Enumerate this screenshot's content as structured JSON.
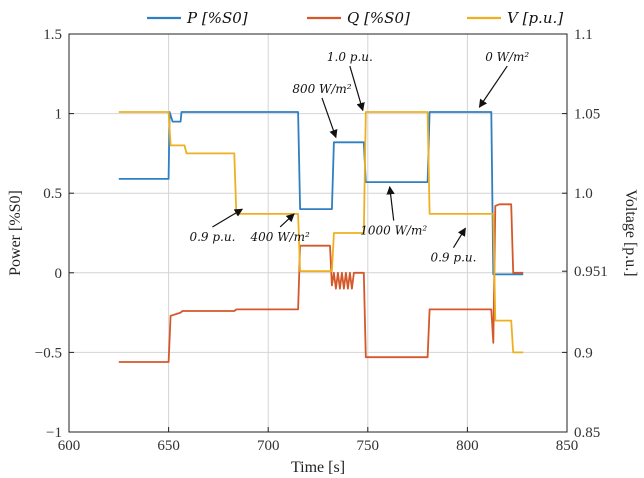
{
  "chart_data": {
    "type": "line",
    "xlabel": "Time [s]",
    "ylabel_left": "Power [%S0]",
    "ylabel_right": "Voltage [p.u.]",
    "xlim": [
      600,
      850
    ],
    "ylim_left": [
      -1,
      1.5
    ],
    "ylim_right": [
      0.85,
      1.1
    ],
    "x_ticks": [
      600,
      650,
      700,
      750,
      800,
      850
    ],
    "y_ticks_left": [
      -1,
      -0.5,
      0,
      0.5,
      1,
      1.5
    ],
    "y_tick_labels_left": [
      "−1",
      "−0.5",
      "0",
      "0.5",
      "1",
      "1.5"
    ],
    "y_ticks_right": [
      0.85,
      0.9,
      0.951,
      1.0,
      1.05,
      1.1
    ],
    "y_tick_labels_right": [
      "0.85",
      "0.9",
      "0.951",
      "1.0",
      "1.05",
      "1.1"
    ],
    "grid": true,
    "legend_position": "top",
    "series": [
      {
        "name": "P [%S0]",
        "color": "#2f7fc1",
        "axis": "left",
        "x": [
          625,
          650,
          650.5,
          652,
          656,
          656.5,
          715,
          716,
          732,
          733,
          748,
          749,
          780,
          781,
          812,
          813,
          828
        ],
        "y": [
          0.59,
          0.59,
          1.01,
          0.95,
          0.95,
          1.01,
          1.01,
          0.4,
          0.4,
          0.82,
          0.82,
          0.57,
          0.57,
          1.01,
          1.01,
          -0.01,
          -0.01
        ]
      },
      {
        "name": "Q [%S0]",
        "color": "#d5582b",
        "axis": "left",
        "x": [
          625,
          650,
          651,
          656,
          657,
          683,
          684,
          715,
          716,
          717,
          731,
          732,
          733,
          734,
          735,
          736,
          737,
          738,
          739,
          740,
          741,
          742,
          743,
          748,
          749,
          780,
          781,
          812,
          813,
          814,
          816,
          822,
          823,
          828
        ],
        "y": [
          -0.56,
          -0.56,
          -0.27,
          -0.25,
          -0.24,
          -0.24,
          -0.23,
          -0.23,
          0.17,
          0.17,
          0.17,
          -0.08,
          0.0,
          -0.1,
          0.0,
          -0.1,
          0.0,
          -0.1,
          0.0,
          -0.1,
          0.0,
          -0.1,
          0.0,
          0.0,
          -0.53,
          -0.53,
          -0.23,
          -0.23,
          -0.44,
          0.42,
          0.43,
          0.43,
          0.0,
          0.0
        ]
      },
      {
        "name": "V [p.u.]",
        "color": "#eeb020",
        "axis": "right",
        "x": [
          625,
          650,
          651,
          658,
          659,
          683,
          684,
          715,
          716,
          732,
          733,
          748,
          749,
          780,
          781,
          813,
          814,
          822,
          823,
          828
        ],
        "y": [
          1.051,
          1.051,
          1.03,
          1.03,
          1.025,
          1.025,
          0.987,
          0.987,
          0.951,
          0.951,
          0.975,
          0.975,
          1.051,
          1.051,
          0.987,
          0.987,
          0.92,
          0.92,
          0.9,
          0.9
        ]
      }
    ],
    "annotations": [
      {
        "text": "1.0 p.u.",
        "tx": 741,
        "ty": 1.33,
        "ax": 747.5,
        "ay": 1.02
      },
      {
        "text": "0 W/m²",
        "tx": 820,
        "ty": 1.33,
        "ax": 806,
        "ay": 1.04
      },
      {
        "text": "800 W/m²",
        "tx": 727,
        "ty": 1.13,
        "ax": 734,
        "ay": 0.85
      },
      {
        "text": "0.9 p.u.",
        "tx": 672,
        "ty": 0.2,
        "ax": 687,
        "ay": 0.4
      },
      {
        "text": "400 W/m²",
        "tx": 706,
        "ty": 0.2,
        "ax": 713,
        "ay": 0.37
      },
      {
        "text": "1000 W/m²",
        "tx": 763,
        "ty": 0.24,
        "ax": 761,
        "ay": 0.54
      },
      {
        "text": "0.9 p.u.",
        "tx": 793,
        "ty": 0.07,
        "ax": 799,
        "ay": 0.28
      }
    ]
  }
}
